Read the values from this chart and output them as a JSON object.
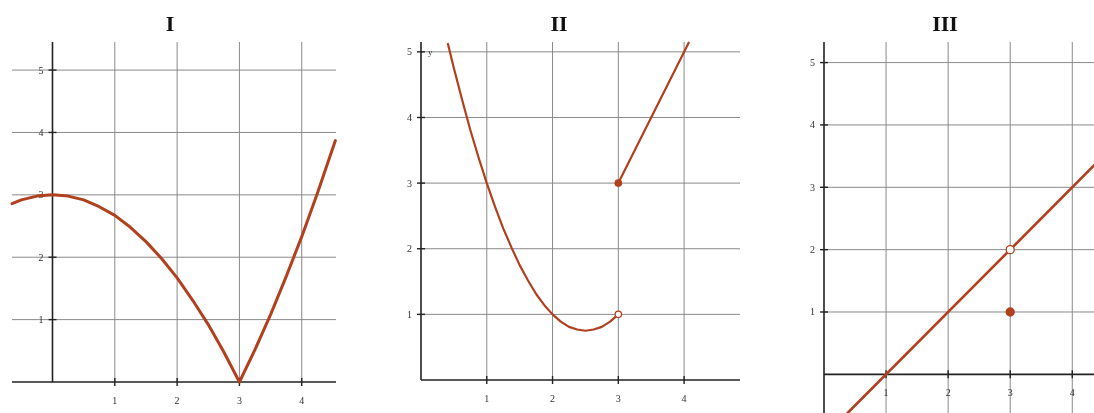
{
  "chart_data": [
    {
      "type": "line",
      "title": "I",
      "xlim": [
        -0.65,
        4.55
      ],
      "ylim": [
        0,
        5.45
      ],
      "xticks": [
        1,
        2,
        3,
        4
      ],
      "yticks": [
        1,
        2,
        3,
        4,
        5
      ],
      "grid": true,
      "series": [
        {
          "type": "line",
          "color": "#b0401e",
          "x": [
            -0.65,
            -0.5,
            -0.25,
            0,
            0.25,
            0.5,
            0.75,
            1,
            1.25,
            1.5,
            1.75,
            2,
            2.25,
            2.5,
            2.75,
            3,
            3.25,
            3.5,
            3.75,
            4,
            4.25,
            4.54
          ],
          "values": [
            2.86,
            2.92,
            2.98,
            3,
            2.98,
            2.92,
            2.81,
            2.67,
            2.48,
            2.25,
            1.98,
            1.67,
            1.31,
            0.92,
            0.48,
            0,
            0.52,
            1.08,
            1.69,
            2.33,
            3.02,
            3.87
          ]
        }
      ]
    },
    {
      "type": "line",
      "title": "II",
      "ylabel": "y",
      "xlim": [
        0,
        4.85
      ],
      "ylim": [
        0,
        5.15
      ],
      "xticks": [
        1,
        2,
        3,
        4
      ],
      "yticks": [
        1,
        2,
        3,
        4,
        5
      ],
      "grid": true,
      "series": [
        {
          "type": "line",
          "color": "#b0401e",
          "x": [
            0.41,
            0.5,
            0.625,
            0.75,
            0.875,
            1,
            1.125,
            1.25,
            1.375,
            1.5,
            1.625,
            1.75,
            1.875,
            2,
            2.125,
            2.25,
            2.375,
            2.5,
            2.625,
            2.75,
            2.875,
            3
          ],
          "values": [
            5.12,
            4.75,
            4.27,
            3.81,
            3.39,
            3,
            2.64,
            2.31,
            2.02,
            1.75,
            1.52,
            1.31,
            1.14,
            1,
            0.89,
            0.81,
            0.77,
            0.75,
            0.77,
            0.81,
            0.89,
            1
          ]
        },
        {
          "type": "line",
          "color": "#b0401e",
          "x": [
            3,
            4.07
          ],
          "values": [
            3,
            5.14
          ]
        },
        {
          "type": "scatter",
          "marker": "circle",
          "color": "#b0401e",
          "x": [
            3
          ],
          "values": [
            3
          ]
        },
        {
          "type": "scatter",
          "marker": "circle",
          "color": "#ffffff",
          "x": [
            3
          ],
          "values": [
            1
          ]
        }
      ]
    },
    {
      "type": "line",
      "title": "III",
      "xlim": [
        0,
        4.35
      ],
      "ylim": [
        -0.62,
        5.33
      ],
      "xticks": [
        1,
        2,
        3,
        4
      ],
      "yticks": [
        1,
        2,
        3,
        4,
        5
      ],
      "grid": true,
      "series": [
        {
          "type": "line",
          "color": "#b0401e",
          "x": [
            0.38,
            4.35
          ],
          "values": [
            -0.62,
            3.35
          ]
        },
        {
          "type": "scatter",
          "marker": "circle",
          "color": "#ffffff",
          "x": [
            3
          ],
          "values": [
            2
          ]
        },
        {
          "type": "scatter",
          "marker": "circle",
          "color": "#b0401e",
          "x": [
            3
          ],
          "values": [
            1
          ]
        }
      ]
    }
  ]
}
